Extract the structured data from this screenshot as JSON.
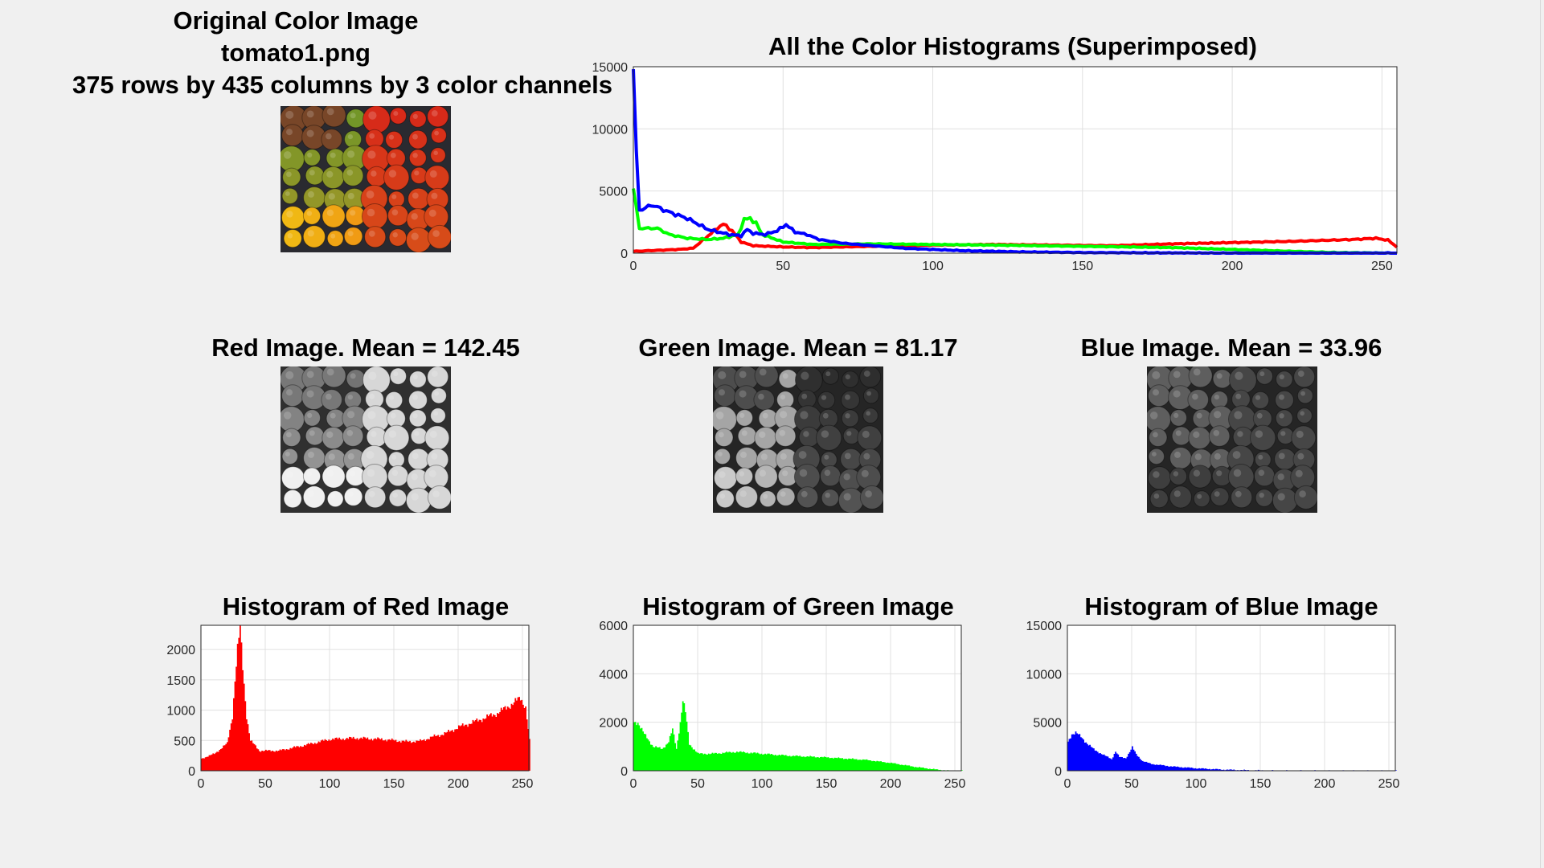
{
  "figure": {
    "original_title": [
      "Original Color Image",
      "tomato1.png",
      "375 rows by 435 columns by 3 color channels"
    ],
    "superimposed_title": "All the Color Histograms (Superimposed)",
    "red_image_title": "Red Image.  Mean = 142.45",
    "green_image_title": "Green Image.  Mean =  81.17",
    "blue_image_title": "Blue Image.  Mean =  33.96",
    "red_hist_title": "Histogram of Red Image",
    "green_hist_title": "Histogram of Green Image",
    "blue_hist_title": "Histogram of Blue Image"
  },
  "colors": {
    "red": "#ff0000",
    "green": "#00ff00",
    "blue": "#0000ff",
    "grid": "#e0e0e0",
    "background": "#f0f0f0"
  },
  "chart_data": [
    {
      "id": "superimposed",
      "type": "line",
      "title": "All the Color Histograms (Superimposed)",
      "xlim": [
        0,
        255
      ],
      "ylim": [
        0,
        15000
      ],
      "xticks": [
        0,
        50,
        100,
        150,
        200,
        250
      ],
      "yticks": [
        0,
        5000,
        10000,
        15000
      ],
      "grid": true,
      "series": [
        {
          "color": "red",
          "points": [
            [
              0,
              150
            ],
            [
              5,
              200
            ],
            [
              10,
              250
            ],
            [
              15,
              300
            ],
            [
              20,
              400
            ],
            [
              25,
              1400
            ],
            [
              28,
              2000
            ],
            [
              30,
              2350
            ],
            [
              33,
              1800
            ],
            [
              36,
              900
            ],
            [
              40,
              600
            ],
            [
              50,
              500
            ],
            [
              60,
              450
            ],
            [
              80,
              550
            ],
            [
              100,
              650
            ],
            [
              120,
              700
            ],
            [
              140,
              650
            ],
            [
              160,
              600
            ],
            [
              180,
              750
            ],
            [
              200,
              850
            ],
            [
              220,
              950
            ],
            [
              240,
              1100
            ],
            [
              248,
              1200
            ],
            [
              252,
              1050
            ],
            [
              255,
              500
            ]
          ]
        },
        {
          "color": "green",
          "points": [
            [
              0,
              5200
            ],
            [
              2,
              2000
            ],
            [
              8,
              2000
            ],
            [
              12,
              1500
            ],
            [
              18,
              1200
            ],
            [
              25,
              1100
            ],
            [
              30,
              1200
            ],
            [
              35,
              1500
            ],
            [
              37,
              2700
            ],
            [
              39,
              2800
            ],
            [
              41,
              2400
            ],
            [
              43,
              1500
            ],
            [
              50,
              900
            ],
            [
              60,
              700
            ],
            [
              80,
              750
            ],
            [
              100,
              700
            ],
            [
              120,
              650
            ],
            [
              150,
              550
            ],
            [
              180,
              450
            ],
            [
              200,
              300
            ],
            [
              220,
              150
            ],
            [
              235,
              50
            ],
            [
              255,
              0
            ]
          ]
        },
        {
          "color": "blue",
          "points": [
            [
              0,
              14800
            ],
            [
              1,
              8000
            ],
            [
              2,
              3500
            ],
            [
              4,
              3600
            ],
            [
              6,
              3900
            ],
            [
              8,
              3700
            ],
            [
              12,
              3300
            ],
            [
              18,
              2800
            ],
            [
              25,
              1900
            ],
            [
              32,
              1500
            ],
            [
              36,
              1400
            ],
            [
              38,
              1900
            ],
            [
              40,
              1600
            ],
            [
              44,
              1500
            ],
            [
              48,
              1800
            ],
            [
              51,
              2300
            ],
            [
              54,
              1700
            ],
            [
              58,
              1500
            ],
            [
              62,
              1100
            ],
            [
              70,
              800
            ],
            [
              90,
              400
            ],
            [
              110,
              200
            ],
            [
              130,
              100
            ],
            [
              150,
              50
            ],
            [
              200,
              0
            ],
            [
              255,
              0
            ]
          ]
        }
      ]
    },
    {
      "id": "red_hist",
      "type": "bar",
      "title": "Histogram of Red Image",
      "color": "red",
      "xlim": [
        0,
        255
      ],
      "ylim": [
        0,
        2400
      ],
      "xticks": [
        0,
        50,
        100,
        150,
        200,
        250
      ],
      "yticks": [
        0,
        500,
        1000,
        1500,
        2000
      ],
      "grid": true,
      "profile": [
        [
          0,
          200
        ],
        [
          10,
          280
        ],
        [
          20,
          450
        ],
        [
          24,
          900
        ],
        [
          26,
          1500
        ],
        [
          28,
          2000
        ],
        [
          30,
          2350
        ],
        [
          32,
          1700
        ],
        [
          35,
          900
        ],
        [
          38,
          500
        ],
        [
          45,
          330
        ],
        [
          60,
          330
        ],
        [
          80,
          420
        ],
        [
          100,
          520
        ],
        [
          120,
          540
        ],
        [
          140,
          520
        ],
        [
          160,
          480
        ],
        [
          170,
          490
        ],
        [
          180,
          560
        ],
        [
          190,
          620
        ],
        [
          200,
          720
        ],
        [
          215,
          830
        ],
        [
          230,
          950
        ],
        [
          240,
          1080
        ],
        [
          248,
          1200
        ],
        [
          252,
          1050
        ],
        [
          255,
          500
        ]
      ]
    },
    {
      "id": "green_hist",
      "type": "bar",
      "title": "Histogram of Green Image",
      "color": "green",
      "xlim": [
        0,
        255
      ],
      "ylim": [
        0,
        6000
      ],
      "xticks": [
        0,
        50,
        100,
        150,
        200,
        250
      ],
      "yticks": [
        0,
        2000,
        4000,
        6000
      ],
      "grid": true,
      "profile": [
        [
          0,
          2000
        ],
        [
          3,
          2000
        ],
        [
          8,
          1500
        ],
        [
          15,
          1000
        ],
        [
          22,
          900
        ],
        [
          27,
          1200
        ],
        [
          30,
          1700
        ],
        [
          33,
          900
        ],
        [
          36,
          2000
        ],
        [
          38,
          2900
        ],
        [
          40,
          2400
        ],
        [
          43,
          1100
        ],
        [
          50,
          700
        ],
        [
          60,
          700
        ],
        [
          80,
          780
        ],
        [
          100,
          700
        ],
        [
          120,
          620
        ],
        [
          150,
          550
        ],
        [
          180,
          450
        ],
        [
          200,
          320
        ],
        [
          220,
          150
        ],
        [
          235,
          50
        ],
        [
          245,
          0
        ],
        [
          255,
          0
        ]
      ]
    },
    {
      "id": "blue_hist",
      "type": "bar",
      "title": "Histogram of Blue Image",
      "color": "blue",
      "xlim": [
        0,
        255
      ],
      "ylim": [
        0,
        15000
      ],
      "xticks": [
        0,
        50,
        100,
        150,
        200,
        250
      ],
      "yticks": [
        0,
        5000,
        10000,
        15000
      ],
      "grid": true,
      "profile": [
        [
          0,
          3000
        ],
        [
          3,
          3800
        ],
        [
          6,
          3900
        ],
        [
          10,
          3500
        ],
        [
          15,
          2800
        ],
        [
          20,
          2200
        ],
        [
          28,
          1600
        ],
        [
          34,
          1200
        ],
        [
          37,
          2000
        ],
        [
          40,
          1400
        ],
        [
          45,
          1300
        ],
        [
          50,
          2400
        ],
        [
          53,
          1700
        ],
        [
          58,
          1000
        ],
        [
          65,
          700
        ],
        [
          80,
          450
        ],
        [
          100,
          250
        ],
        [
          120,
          120
        ],
        [
          140,
          50
        ],
        [
          160,
          10
        ],
        [
          200,
          0
        ],
        [
          255,
          0
        ]
      ]
    }
  ]
}
